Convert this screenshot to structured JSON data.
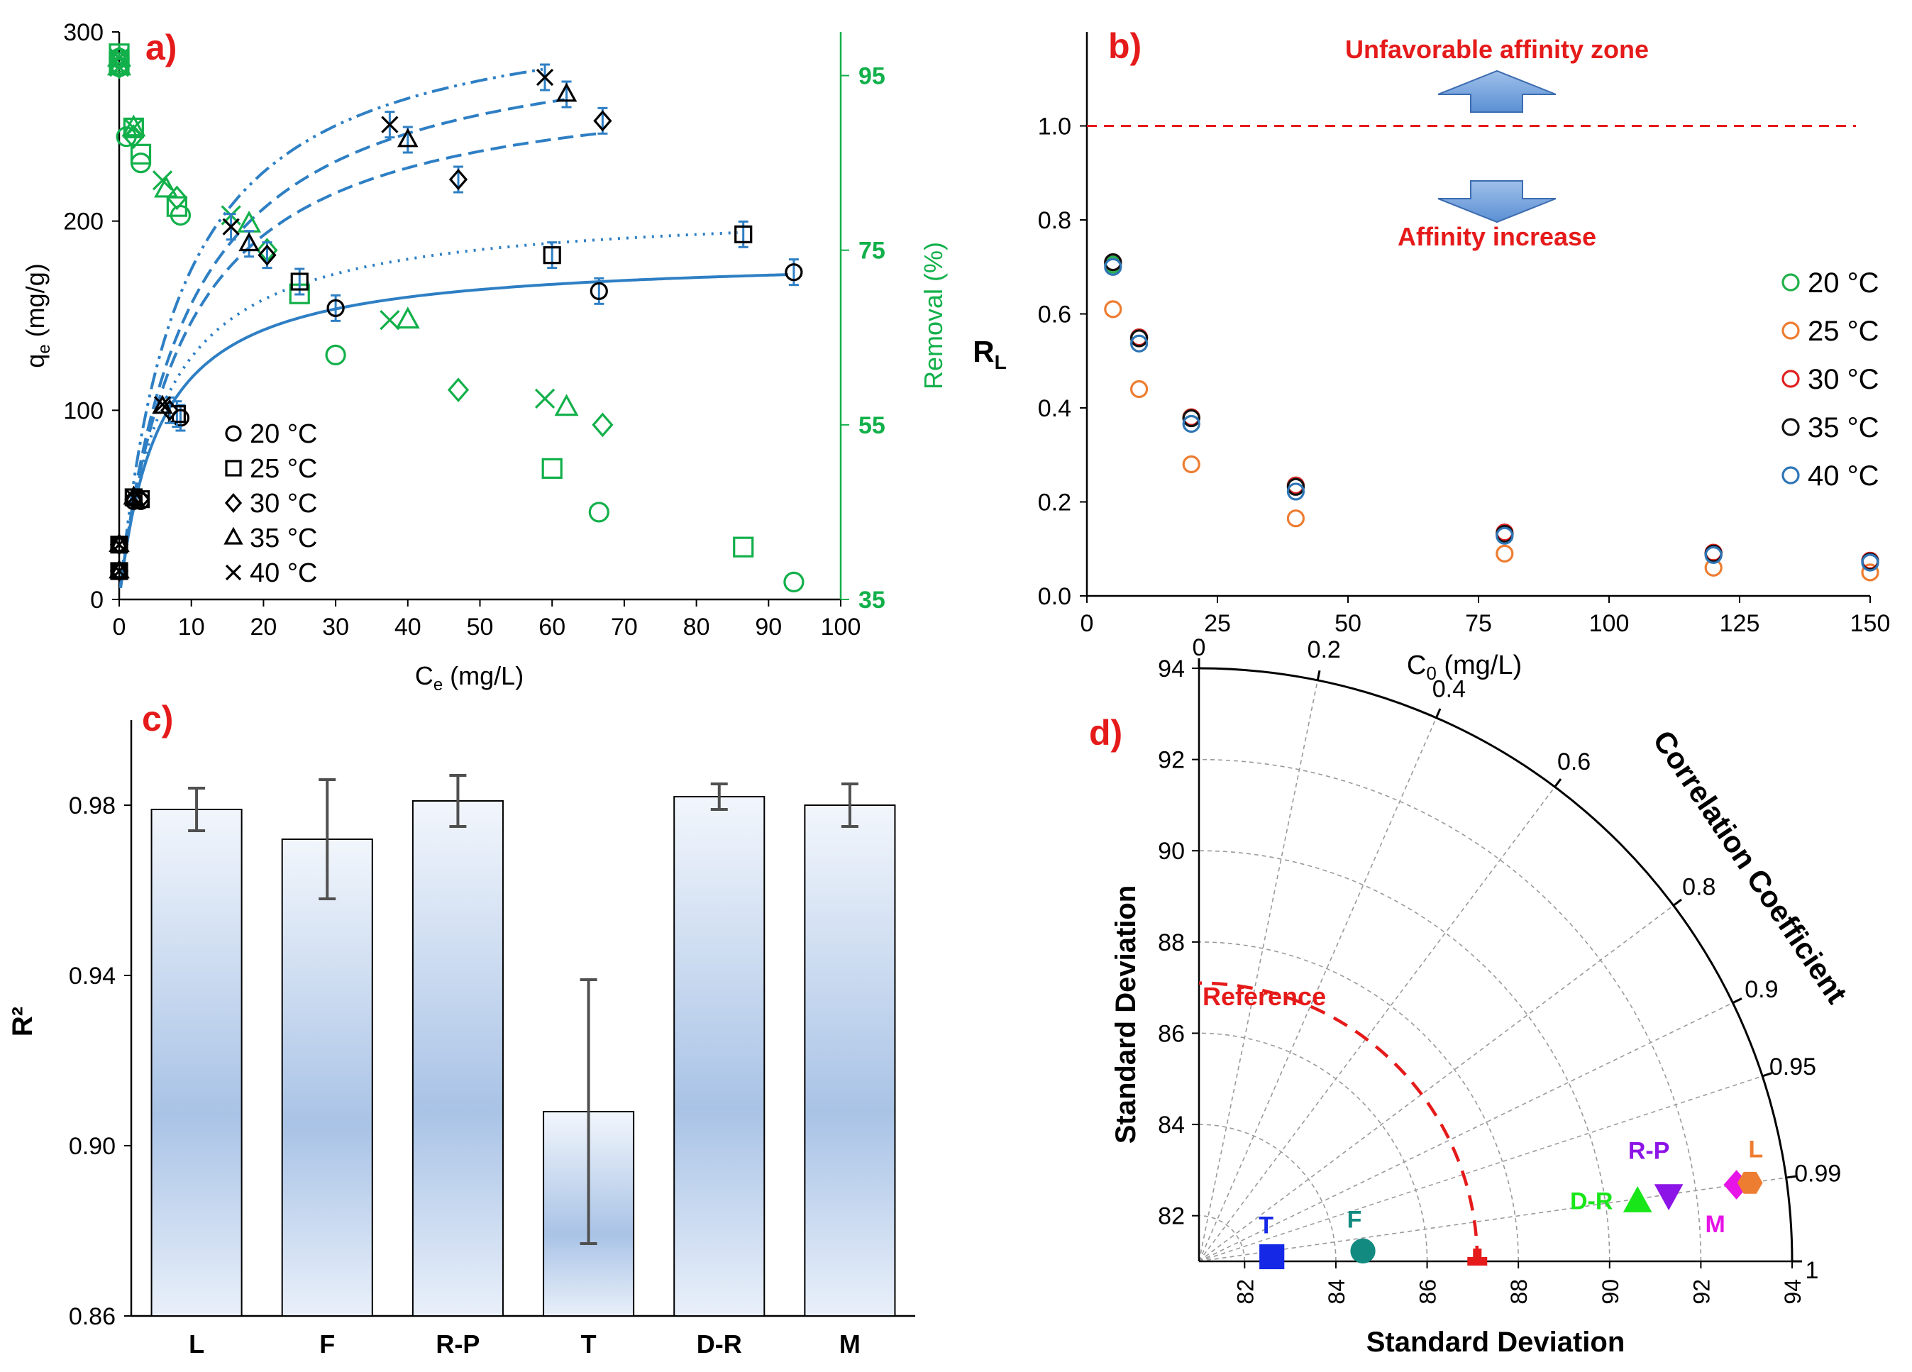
{
  "chart_data": [
    {
      "panel": "a)",
      "type": "scatter",
      "xlabel_main": "C",
      "xlabel_sub": "e",
      "xlabel_unit": " (mg/L)",
      "ylabel_main": "q",
      "ylabel_sub": "e",
      "ylabel_unit": " (mg/g)",
      "y2label": "Removal (%)",
      "xlim": [
        0,
        100
      ],
      "ylim": [
        0,
        300
      ],
      "y2lim": [
        35,
        100
      ],
      "x_ticks": [
        "0",
        "10",
        "20",
        "30",
        "40",
        "50",
        "60",
        "70",
        "80",
        "90",
        "100"
      ],
      "y_ticks": [
        "0",
        "100",
        "200",
        "300"
      ],
      "y2_ticks": [
        "35",
        "55",
        "75",
        "95"
      ],
      "legend": [
        "20 °C",
        "25 °C",
        "30 °C",
        "35 °C",
        "40 °C"
      ],
      "markers": [
        "circle",
        "square",
        "diamond",
        "triangle",
        "cross"
      ],
      "series": [
        {
          "name": "20 °C",
          "x": [
            0,
            0,
            2,
            3,
            8.5,
            30,
            66.5,
            93.5
          ],
          "y": [
            15,
            29,
            52,
            52,
            96,
            154,
            163,
            173
          ],
          "removal_x": [
            0,
            0,
            1,
            3,
            8.5,
            30,
            66.5,
            93.5
          ],
          "removal": [
            97,
            96,
            88,
            85,
            79,
            63,
            45,
            37
          ]
        },
        {
          "name": "25 °C",
          "x": [
            0,
            0,
            2,
            3,
            8,
            25,
            60,
            86.5
          ],
          "y": [
            15,
            29,
            54,
            53,
            98,
            168,
            182,
            193
          ],
          "removal_x": [
            0,
            0,
            2,
            3,
            8,
            25,
            60,
            86.5
          ],
          "removal": [
            97.5,
            96.5,
            89,
            86,
            80,
            70,
            50,
            41
          ]
        },
        {
          "name": "30 °C",
          "x": [
            0,
            0,
            2,
            3,
            7,
            20.5,
            47,
            67
          ],
          "y": [
            15,
            29,
            53,
            53,
            100,
            182,
            222,
            253
          ],
          "removal_x": [
            0,
            0,
            2,
            8,
            20.5,
            47,
            67
          ],
          "removal": [
            97,
            96,
            88,
            81,
            75,
            59,
            55
          ]
        },
        {
          "name": "35 °C",
          "x": [
            0,
            0,
            2,
            6,
            18,
            40,
            62
          ],
          "y": [
            15,
            29,
            54,
            102,
            188,
            243,
            267
          ],
          "removal_x": [
            0,
            0,
            2,
            6.5,
            18,
            40,
            62
          ],
          "removal": [
            97,
            96,
            89,
            82,
            78,
            67,
            57
          ]
        },
        {
          "name": "40 °C",
          "x": [
            0,
            0,
            2,
            6,
            15.5,
            37.5,
            59
          ],
          "y": [
            15,
            29,
            54,
            103,
            197,
            251,
            276
          ],
          "removal_x": [
            0,
            0,
            2,
            6,
            15.5,
            37.5,
            59
          ],
          "removal": [
            97,
            96,
            89,
            83,
            79,
            67,
            58
          ]
        }
      ],
      "fit_qmax": [
        182,
        208,
        280,
        305,
        320
      ],
      "fit_k": [
        0.18,
        0.16,
        0.11,
        0.105,
        0.12
      ],
      "fit_xmax": [
        93,
        86,
        67,
        62,
        59
      ]
    },
    {
      "panel": "b)",
      "type": "scatter",
      "xlabel_main": "C",
      "xlabel_sub": "0",
      "xlabel_unit": " (mg/L)",
      "ylabel_main": "R",
      "ylabel_sub": "L",
      "xlim": [
        0,
        150
      ],
      "ylim": [
        0,
        1.2
      ],
      "x_ticks": [
        "0",
        "25",
        "50",
        "75",
        "100",
        "125",
        "150"
      ],
      "y_ticks": [
        "0.0",
        "0.2",
        "0.4",
        "0.6",
        "0.8",
        "1.0"
      ],
      "x": [
        5,
        10,
        20,
        40,
        80,
        120,
        150
      ],
      "series": [
        {
          "name": "20 °C",
          "color": "#22b14c",
          "values": [
            0.705,
            0.55,
            0.38,
            0.235,
            0.13,
            0.09,
            0.072
          ]
        },
        {
          "name": "25 °C",
          "color": "#ed7d31",
          "values": [
            0.61,
            0.44,
            0.28,
            0.165,
            0.09,
            0.06,
            0.05
          ]
        },
        {
          "name": "30 °C",
          "color": "#e02020",
          "values": [
            0.71,
            0.55,
            0.38,
            0.235,
            0.135,
            0.092,
            0.075
          ]
        },
        {
          "name": "35 °C",
          "color": "#111111",
          "values": [
            0.71,
            0.548,
            0.378,
            0.232,
            0.132,
            0.09,
            0.073
          ]
        },
        {
          "name": "40 °C",
          "color": "#2e75b6",
          "values": [
            0.7,
            0.537,
            0.366,
            0.222,
            0.128,
            0.087,
            0.071
          ]
        }
      ],
      "reference_line": 1.0,
      "annotation_top": "Unfavorable affinity zone",
      "annotation_bottom": "Affinity increase"
    },
    {
      "panel": "c)",
      "type": "bar",
      "ylabel": "R²",
      "ylim": [
        0.86,
        1.0
      ],
      "y_ticks": [
        "0.86",
        "0.90",
        "0.94",
        "0.98"
      ],
      "categories": [
        "L",
        "F",
        "R-P",
        "T",
        "D-R",
        "M"
      ],
      "values": [
        0.979,
        0.972,
        0.981,
        0.908,
        0.982,
        0.98
      ],
      "errors": [
        0.005,
        0.014,
        0.006,
        0.031,
        0.003,
        0.005
      ]
    },
    {
      "panel": "d)",
      "type": "taylor",
      "xlabel": "Standard Deviation",
      "ylabel": "Standard Deviation",
      "arc_label": "Correlation Coefficient",
      "std_min": 81,
      "std_max": 94,
      "std_ticks_x": [
        "82",
        "84",
        "86",
        "88",
        "90",
        "92",
        "94"
      ],
      "std_ticks_y": [
        "82",
        "84",
        "86",
        "88",
        "90",
        "92",
        "94"
      ],
      "corr_ticks": [
        "0",
        "0.2",
        "0.4",
        "0.6",
        "0.8",
        "0.9",
        "0.95",
        "0.99",
        "1"
      ],
      "reference_label": "Reference",
      "reference_std": 87.1,
      "models": [
        {
          "label": "T",
          "std": 82.6,
          "corr": 0.998,
          "shape": "square",
          "color": "#1428e6"
        },
        {
          "label": "F",
          "std": 84.6,
          "corr": 0.998,
          "shape": "circle",
          "color": "#138a80"
        },
        {
          "label": "D-R",
          "std": 90.7,
          "corr": 0.991,
          "shape": "triangle",
          "color": "#19e619"
        },
        {
          "label": "R-P",
          "std": 91.4,
          "corr": 0.99,
          "shape": "triangle-down",
          "color": "#8c14e6"
        },
        {
          "label": "M",
          "std": 92.9,
          "corr": 0.99,
          "shape": "diamond",
          "color": "#e614e6"
        },
        {
          "label": "L",
          "std": 93.2,
          "corr": 0.99,
          "shape": "hexagon",
          "color": "#ed7d31"
        }
      ]
    }
  ]
}
